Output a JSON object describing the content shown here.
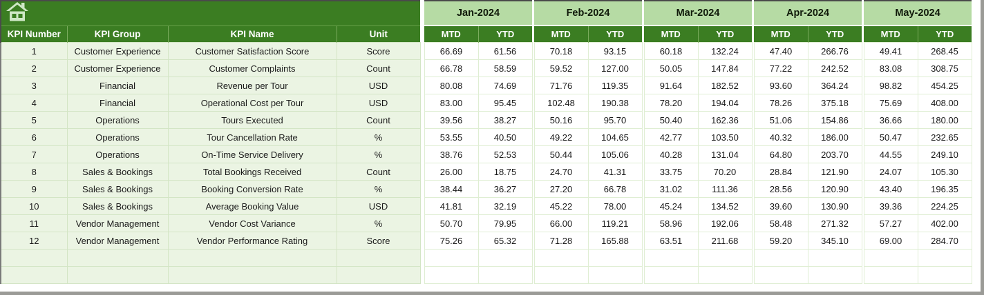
{
  "table": {
    "left_headers": [
      "KPI Number",
      "KPI Group",
      "KPI Name",
      "Unit"
    ],
    "months": [
      "Jan-2024",
      "Feb-2024",
      "Mar-2024",
      "Apr-2024",
      "May-2024"
    ],
    "period_headers": [
      "MTD",
      "YTD"
    ],
    "rows": [
      {
        "kpi_number": "1",
        "kpi_group": "Customer Experience",
        "kpi_name": "Customer Satisfaction Score",
        "unit": "Score",
        "values": [
          "66.69",
          "61.56",
          "70.18",
          "93.15",
          "60.18",
          "132.24",
          "47.40",
          "266.76",
          "49.41",
          "268.45"
        ]
      },
      {
        "kpi_number": "2",
        "kpi_group": "Customer Experience",
        "kpi_name": "Customer Complaints",
        "unit": "Count",
        "values": [
          "66.78",
          "58.59",
          "59.52",
          "127.00",
          "50.05",
          "147.84",
          "77.22",
          "242.52",
          "83.08",
          "308.75"
        ]
      },
      {
        "kpi_number": "3",
        "kpi_group": "Financial",
        "kpi_name": "Revenue per Tour",
        "unit": "USD",
        "values": [
          "80.08",
          "74.69",
          "71.76",
          "119.35",
          "91.64",
          "182.52",
          "93.60",
          "364.24",
          "98.82",
          "454.25"
        ]
      },
      {
        "kpi_number": "4",
        "kpi_group": "Financial",
        "kpi_name": "Operational Cost per Tour",
        "unit": "USD",
        "values": [
          "83.00",
          "95.45",
          "102.48",
          "190.38",
          "78.20",
          "194.04",
          "78.26",
          "375.18",
          "75.69",
          "408.00"
        ]
      },
      {
        "kpi_number": "5",
        "kpi_group": "Operations",
        "kpi_name": "Tours Executed",
        "unit": "Count",
        "values": [
          "39.56",
          "38.27",
          "50.16",
          "95.70",
          "50.40",
          "162.36",
          "51.06",
          "154.86",
          "36.66",
          "180.00"
        ]
      },
      {
        "kpi_number": "6",
        "kpi_group": "Operations",
        "kpi_name": "Tour Cancellation Rate",
        "unit": "%",
        "values": [
          "53.55",
          "40.50",
          "49.22",
          "104.65",
          "42.77",
          "103.50",
          "40.32",
          "186.00",
          "50.47",
          "232.65"
        ]
      },
      {
        "kpi_number": "7",
        "kpi_group": "Operations",
        "kpi_name": "On-Time Service Delivery",
        "unit": "%",
        "values": [
          "38.76",
          "52.53",
          "50.44",
          "105.06",
          "40.28",
          "131.04",
          "64.80",
          "203.70",
          "44.55",
          "249.10"
        ]
      },
      {
        "kpi_number": "8",
        "kpi_group": "Sales & Bookings",
        "kpi_name": "Total Bookings Received",
        "unit": "Count",
        "values": [
          "26.00",
          "18.75",
          "24.70",
          "41.31",
          "33.75",
          "70.20",
          "28.84",
          "121.90",
          "24.07",
          "105.30"
        ]
      },
      {
        "kpi_number": "9",
        "kpi_group": "Sales & Bookings",
        "kpi_name": "Booking Conversion Rate",
        "unit": "%",
        "values": [
          "38.44",
          "36.27",
          "27.20",
          "66.78",
          "31.02",
          "111.36",
          "28.56",
          "120.90",
          "43.40",
          "196.35"
        ]
      },
      {
        "kpi_number": "10",
        "kpi_group": "Sales & Bookings",
        "kpi_name": "Average Booking Value",
        "unit": "USD",
        "values": [
          "41.81",
          "32.19",
          "45.22",
          "78.00",
          "45.24",
          "134.52",
          "39.60",
          "130.90",
          "39.36",
          "224.25"
        ]
      },
      {
        "kpi_number": "11",
        "kpi_group": "Vendor Management",
        "kpi_name": "Vendor Cost Variance",
        "unit": "%",
        "values": [
          "50.70",
          "79.95",
          "66.00",
          "119.21",
          "58.96",
          "192.06",
          "58.48",
          "271.32",
          "57.27",
          "402.00"
        ]
      },
      {
        "kpi_number": "12",
        "kpi_group": "Vendor Management",
        "kpi_name": "Vendor Performance Rating",
        "unit": "Score",
        "values": [
          "75.26",
          "65.32",
          "71.28",
          "165.88",
          "63.51",
          "211.68",
          "59.20",
          "345.10",
          "69.00",
          "284.70"
        ]
      }
    ],
    "empty_row_count": 2
  },
  "icons": {
    "corner": "home-icon"
  },
  "colors": {
    "header_green": "#3b7d22",
    "month_band_green": "#b6dba4",
    "left_cell_bg": "#ebf4e3",
    "grid_line_green": "#dfeed3",
    "icon_fill": "#cfe8c6",
    "outer_border": "#4a4a4a",
    "frame_gray": "#9b9b97"
  }
}
